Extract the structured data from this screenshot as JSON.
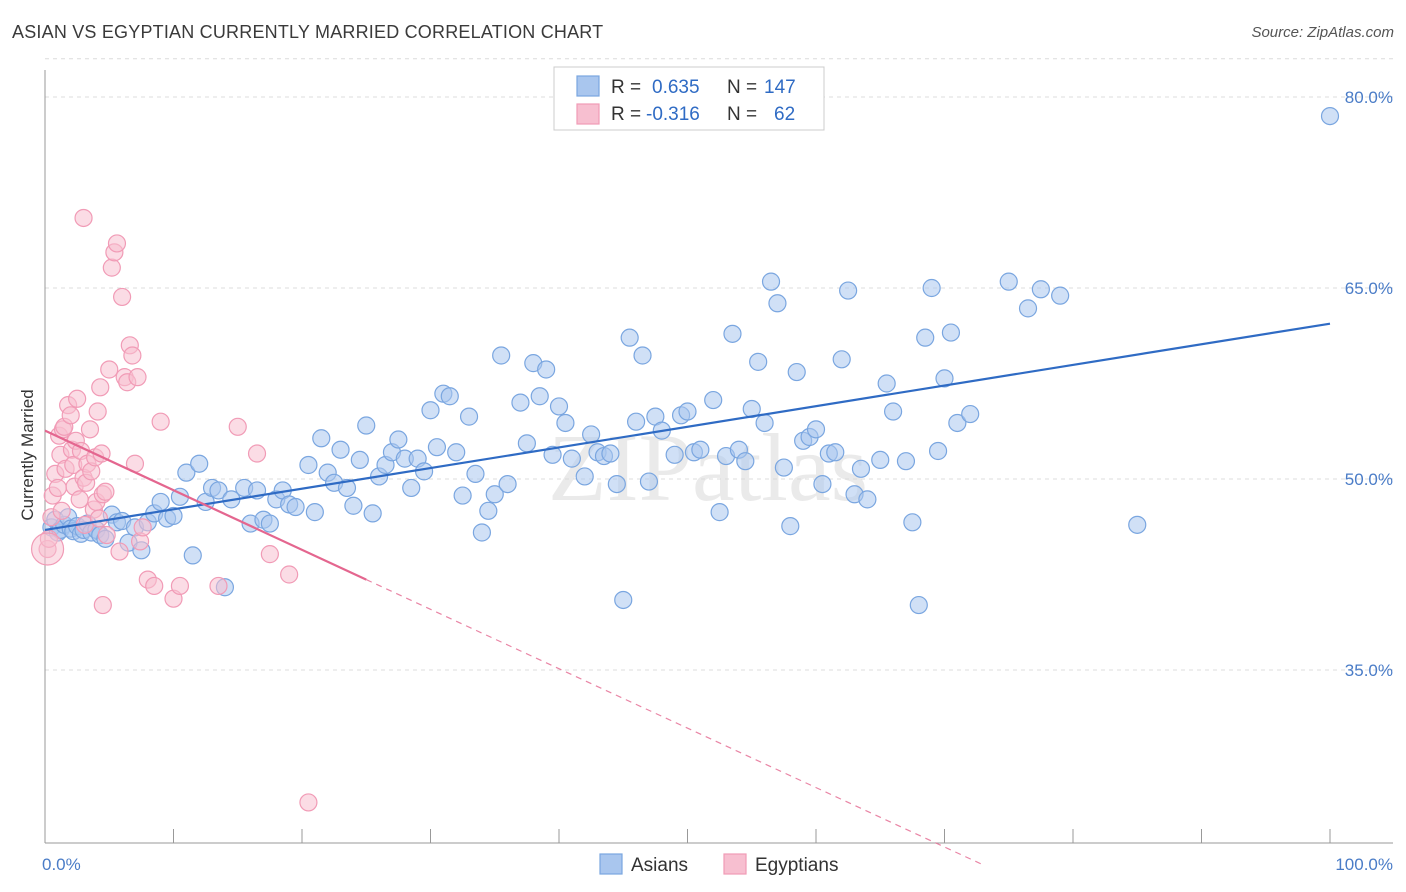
{
  "title": "ASIAN VS EGYPTIAN CURRENTLY MARRIED CORRELATION CHART",
  "source": "Source: ZipAtlas.com",
  "watermark": "ZIPatlas",
  "chart_data": {
    "type": "scatter",
    "ylabel": "Currently Married",
    "xlabel": "",
    "xlim": [
      0,
      100
    ],
    "ylim": [
      20,
      83
    ],
    "x_tick_labels": [
      "0.0%",
      "100.0%"
    ],
    "y_ticks": [
      35,
      50,
      65,
      80
    ],
    "y_tick_labels": [
      "35.0%",
      "50.0%",
      "65.0%",
      "80.0%"
    ],
    "grid": true,
    "legend_top": [
      {
        "r_label": "R =",
        "r_value": "0.635",
        "n_label": "N =",
        "n_value": "147"
      },
      {
        "r_label": "R =",
        "r_value": "-0.316",
        "n_label": "N =",
        "n_value": "62"
      }
    ],
    "series": [
      {
        "name": "Asians",
        "color": "#7aa6e0",
        "fill": "#a9c6ee",
        "line_color": "#2f6bc4",
        "trend": {
          "x0": 0,
          "y0": 46.0,
          "x1": 100,
          "y1": 62.2
        },
        "points": [
          [
            0.5,
            46.2
          ],
          [
            0.8,
            46.8
          ],
          [
            1.0,
            45.8
          ],
          [
            1.2,
            46.0
          ],
          [
            1.5,
            46.4
          ],
          [
            1.8,
            47.0
          ],
          [
            2.0,
            46.1
          ],
          [
            2.2,
            45.9
          ],
          [
            2.5,
            46.3
          ],
          [
            2.8,
            45.7
          ],
          [
            3.0,
            46.0
          ],
          [
            3.3,
            46.5
          ],
          [
            3.6,
            45.8
          ],
          [
            4.0,
            46.0
          ],
          [
            4.3,
            45.6
          ],
          [
            4.7,
            45.3
          ],
          [
            5.2,
            47.2
          ],
          [
            5.6,
            46.6
          ],
          [
            6.0,
            46.7
          ],
          [
            6.5,
            45.0
          ],
          [
            7.0,
            46.2
          ],
          [
            7.5,
            44.4
          ],
          [
            8.0,
            46.6
          ],
          [
            8.5,
            47.3
          ],
          [
            9.0,
            48.2
          ],
          [
            9.5,
            46.9
          ],
          [
            10.0,
            47.1
          ],
          [
            10.5,
            48.6
          ],
          [
            11.0,
            50.5
          ],
          [
            11.5,
            44.0
          ],
          [
            12.0,
            51.2
          ],
          [
            12.5,
            48.2
          ],
          [
            13.0,
            49.3
          ],
          [
            13.5,
            49.1
          ],
          [
            14.0,
            41.5
          ],
          [
            14.5,
            48.4
          ],
          [
            15.5,
            49.3
          ],
          [
            16.0,
            46.5
          ],
          [
            16.5,
            49.1
          ],
          [
            17.0,
            46.8
          ],
          [
            17.5,
            46.5
          ],
          [
            18.0,
            48.4
          ],
          [
            18.5,
            49.1
          ],
          [
            19.0,
            48.0
          ],
          [
            19.5,
            47.8
          ],
          [
            20.5,
            51.1
          ],
          [
            21.0,
            47.4
          ],
          [
            21.5,
            53.2
          ],
          [
            22.0,
            50.5
          ],
          [
            22.5,
            49.7
          ],
          [
            23.0,
            52.3
          ],
          [
            23.5,
            49.3
          ],
          [
            24.0,
            47.9
          ],
          [
            24.5,
            51.5
          ],
          [
            25.0,
            54.2
          ],
          [
            25.5,
            47.3
          ],
          [
            26.0,
            50.2
          ],
          [
            26.5,
            51.1
          ],
          [
            27.0,
            52.1
          ],
          [
            27.5,
            53.1
          ],
          [
            28.0,
            51.6
          ],
          [
            28.5,
            49.3
          ],
          [
            29.0,
            51.6
          ],
          [
            29.5,
            50.6
          ],
          [
            30.0,
            55.4
          ],
          [
            30.5,
            52.5
          ],
          [
            31.0,
            56.7
          ],
          [
            31.5,
            56.5
          ],
          [
            32.0,
            52.1
          ],
          [
            32.5,
            48.7
          ],
          [
            33.0,
            54.9
          ],
          [
            33.5,
            50.4
          ],
          [
            34.0,
            45.8
          ],
          [
            34.5,
            47.5
          ],
          [
            35.0,
            48.8
          ],
          [
            35.5,
            59.7
          ],
          [
            36.0,
            49.6
          ],
          [
            37.0,
            56.0
          ],
          [
            37.5,
            52.8
          ],
          [
            38.0,
            59.1
          ],
          [
            38.5,
            56.5
          ],
          [
            39.0,
            58.6
          ],
          [
            39.5,
            51.9
          ],
          [
            40.0,
            55.7
          ],
          [
            40.5,
            54.4
          ],
          [
            41.0,
            51.6
          ],
          [
            42.0,
            50.2
          ],
          [
            42.5,
            53.5
          ],
          [
            43.0,
            52.1
          ],
          [
            43.5,
            51.8
          ],
          [
            44.0,
            52.0
          ],
          [
            44.5,
            49.6
          ],
          [
            45.0,
            40.5
          ],
          [
            45.5,
            61.1
          ],
          [
            46.0,
            54.5
          ],
          [
            46.5,
            59.7
          ],
          [
            47.0,
            49.8
          ],
          [
            47.5,
            54.9
          ],
          [
            48.0,
            53.8
          ],
          [
            49.0,
            51.9
          ],
          [
            49.5,
            55.0
          ],
          [
            50.0,
            55.3
          ],
          [
            50.5,
            52.1
          ],
          [
            51.0,
            52.3
          ],
          [
            52.0,
            56.2
          ],
          [
            52.5,
            47.4
          ],
          [
            53.0,
            51.8
          ],
          [
            53.5,
            61.4
          ],
          [
            54.0,
            52.3
          ],
          [
            54.5,
            51.4
          ],
          [
            55.0,
            55.5
          ],
          [
            55.5,
            59.2
          ],
          [
            56.0,
            54.4
          ],
          [
            56.5,
            65.5
          ],
          [
            57.0,
            63.8
          ],
          [
            57.5,
            50.9
          ],
          [
            58.0,
            46.3
          ],
          [
            58.5,
            58.4
          ],
          [
            59.0,
            53.0
          ],
          [
            59.5,
            53.3
          ],
          [
            60.0,
            53.9
          ],
          [
            60.5,
            49.6
          ],
          [
            61.0,
            52.0
          ],
          [
            61.5,
            52.1
          ],
          [
            62.0,
            59.4
          ],
          [
            62.5,
            64.8
          ],
          [
            63.0,
            48.8
          ],
          [
            63.5,
            50.8
          ],
          [
            64.0,
            48.4
          ],
          [
            65.0,
            51.5
          ],
          [
            65.5,
            57.5
          ],
          [
            66.0,
            55.3
          ],
          [
            67.0,
            51.4
          ],
          [
            67.5,
            46.6
          ],
          [
            68.0,
            40.1
          ],
          [
            68.5,
            61.1
          ],
          [
            69.0,
            65.0
          ],
          [
            69.5,
            52.2
          ],
          [
            70.0,
            57.9
          ],
          [
            70.5,
            61.5
          ],
          [
            71.0,
            54.4
          ],
          [
            72.0,
            55.1
          ],
          [
            75.0,
            65.5
          ],
          [
            76.5,
            63.4
          ],
          [
            77.5,
            64.9
          ],
          [
            79.0,
            64.4
          ],
          [
            85.0,
            46.4
          ],
          [
            100.0,
            78.5
          ]
        ]
      },
      {
        "name": "Egyptians",
        "color": "#f19bb6",
        "fill": "#f7bfd0",
        "line_color": "#e4668f",
        "trend": {
          "x0": 0,
          "y0": 53.8,
          "x1": 25,
          "y1": 42.1
        },
        "trend_dashed": {
          "x0": 25,
          "y0": 42.1,
          "x1": 73,
          "y1": 19.7
        },
        "points": [
          [
            0.2,
            44.5
          ],
          [
            0.3,
            45.3
          ],
          [
            0.5,
            47.0
          ],
          [
            0.6,
            48.7
          ],
          [
            0.8,
            50.4
          ],
          [
            1.0,
            49.3
          ],
          [
            1.1,
            53.4
          ],
          [
            1.2,
            51.9
          ],
          [
            1.3,
            47.5
          ],
          [
            1.4,
            53.9
          ],
          [
            1.5,
            54.1
          ],
          [
            1.6,
            50.8
          ],
          [
            1.8,
            55.8
          ],
          [
            2.0,
            55.0
          ],
          [
            2.1,
            52.3
          ],
          [
            2.2,
            51.1
          ],
          [
            2.3,
            49.4
          ],
          [
            2.4,
            53.0
          ],
          [
            2.5,
            56.3
          ],
          [
            2.7,
            48.4
          ],
          [
            2.8,
            52.2
          ],
          [
            3.0,
            50.1
          ],
          [
            3.1,
            46.4
          ],
          [
            3.2,
            49.7
          ],
          [
            3.3,
            51.2
          ],
          [
            3.5,
            53.9
          ],
          [
            3.6,
            50.6
          ],
          [
            3.8,
            47.6
          ],
          [
            3.9,
            51.7
          ],
          [
            4.0,
            48.2
          ],
          [
            4.1,
            55.3
          ],
          [
            4.2,
            46.9
          ],
          [
            4.3,
            57.2
          ],
          [
            4.4,
            52.0
          ],
          [
            4.5,
            48.8
          ],
          [
            4.7,
            49.0
          ],
          [
            4.8,
            45.6
          ],
          [
            5.0,
            58.6
          ],
          [
            5.2,
            66.6
          ],
          [
            5.4,
            67.8
          ],
          [
            5.6,
            68.5
          ],
          [
            5.8,
            44.3
          ],
          [
            6.0,
            64.3
          ],
          [
            6.2,
            58.0
          ],
          [
            6.4,
            57.6
          ],
          [
            6.6,
            60.5
          ],
          [
            6.8,
            59.7
          ],
          [
            7.0,
            51.2
          ],
          [
            7.2,
            58.0
          ],
          [
            7.4,
            45.1
          ],
          [
            7.6,
            46.2
          ],
          [
            8.0,
            42.1
          ],
          [
            8.5,
            41.6
          ],
          [
            9.0,
            54.5
          ],
          [
            10.0,
            40.6
          ],
          [
            10.5,
            41.6
          ],
          [
            13.5,
            41.6
          ],
          [
            15.0,
            54.1
          ],
          [
            16.5,
            52.0
          ],
          [
            17.5,
            44.1
          ],
          [
            19.0,
            42.5
          ],
          [
            20.5,
            24.6
          ],
          [
            3.0,
            70.5
          ],
          [
            4.5,
            40.1
          ]
        ]
      }
    ]
  }
}
